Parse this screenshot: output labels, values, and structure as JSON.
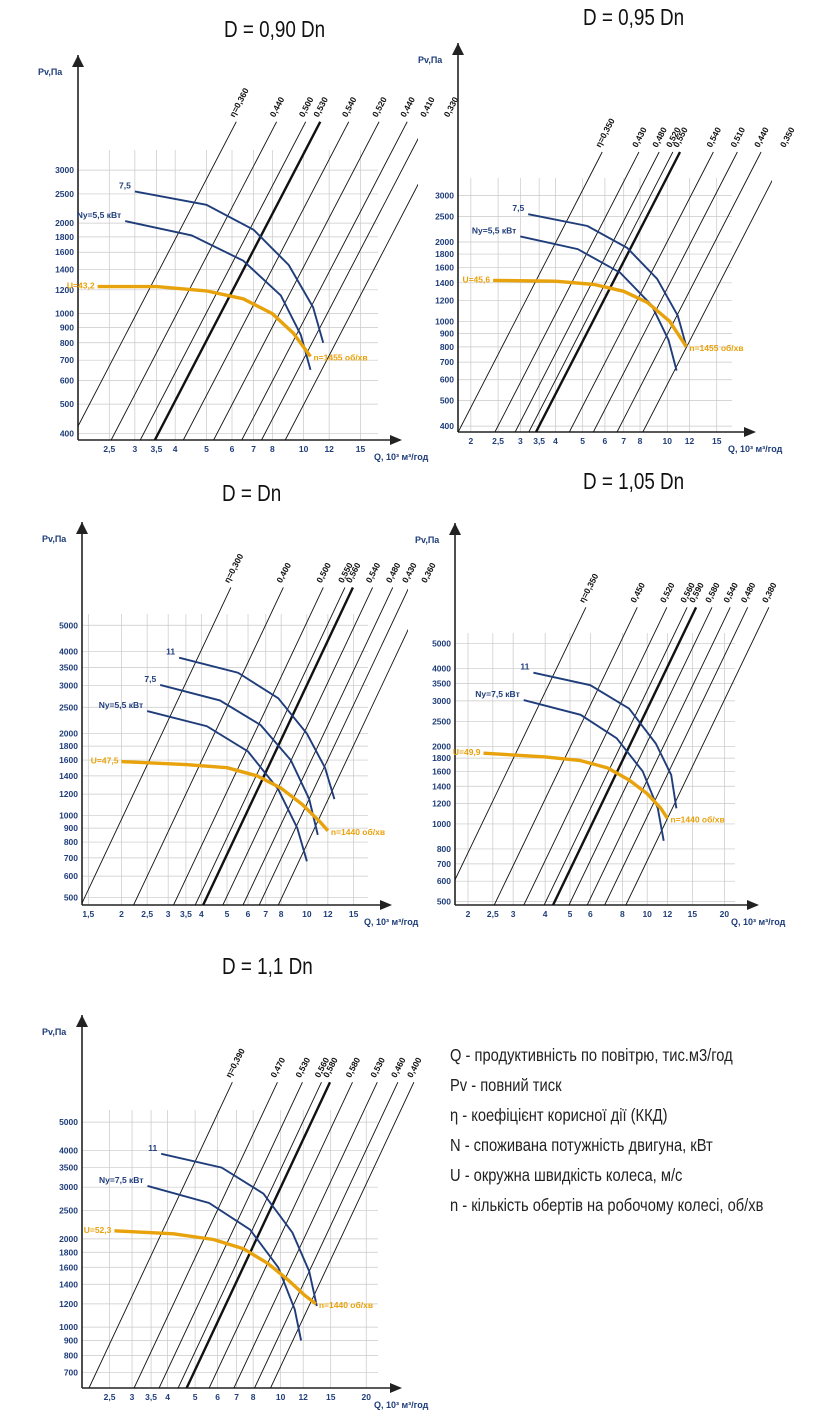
{
  "header_fragment": "",
  "legend": [
    "Q - продуктивність по повітрю, тис.м3/год",
    "Pv - повний тиск",
    "η - коефіцієнт корисної дії (ККД)",
    "N - споживана потужність двигуна, кВт",
    "U - окружна швидкість колеса, м/с",
    "n - кількість обертів на робочому колесі, об/хв"
  ],
  "colors": {
    "grid": "#c8c8c8",
    "axis": "#222222",
    "eff": "#111111",
    "power": "#1f3d7a",
    "speed": "#e8a20c",
    "label_orange": "#e8a20c",
    "label_blue": "#1f3d7a"
  },
  "chart_data": [
    {
      "type": "line",
      "title": "D = 0,90 Dn",
      "ylabel": "Pv,Па",
      "xlabel": "Q, 10³ м³/год",
      "xscale": "log",
      "yscale": "log",
      "xlim": [
        2.0,
        17
      ],
      "ylim": [
        380,
        3500
      ],
      "x_ticks": [
        2.5,
        3,
        3.5,
        4,
        5,
        6,
        7,
        8,
        10,
        12,
        15
      ],
      "x_tick_labels": [
        "2,5",
        "3",
        "3,5",
        "4",
        "5",
        "6",
        "7",
        "8",
        "10",
        "12",
        "15"
      ],
      "y_ticks": [
        400,
        500,
        600,
        700,
        800,
        900,
        1000,
        1200,
        1400,
        1600,
        1800,
        2000,
        2500,
        3000
      ],
      "efficiency_lines": [
        {
          "label": "η=0,360",
          "q_at_400": 1.95,
          "bold": false
        },
        {
          "label": "0,440",
          "q_at_400": 2.6,
          "bold": false
        },
        {
          "label": "0,500",
          "q_at_400": 3.2,
          "bold": false
        },
        {
          "label": "0,530",
          "q_at_400": 3.55,
          "bold": true
        },
        {
          "label": "0,540",
          "q_at_400": 4.35,
          "bold": false
        },
        {
          "label": "0,520",
          "q_at_400": 5.4,
          "bold": false
        },
        {
          "label": "0,440",
          "q_at_400": 6.6,
          "bold": false
        },
        {
          "label": "0,410",
          "q_at_400": 7.6,
          "bold": false
        },
        {
          "label": "0,330",
          "q_at_400": 9.0,
          "bold": false
        }
      ],
      "power_curves": [
        {
          "label": "7,5",
          "points": [
            [
              3.0,
              2550
            ],
            [
              5.0,
              2300
            ],
            [
              7.0,
              1900
            ],
            [
              9.0,
              1450
            ],
            [
              10.7,
              1050
            ],
            [
              11.5,
              800
            ]
          ]
        },
        {
          "label": "Ny=5,5 кВт",
          "points": [
            [
              2.8,
              2030
            ],
            [
              4.5,
              1820
            ],
            [
              6.5,
              1500
            ],
            [
              8.5,
              1150
            ],
            [
              9.8,
              850
            ],
            [
              10.5,
              650
            ]
          ]
        }
      ],
      "speed_curve": {
        "label": "U=43,2",
        "n_label": "n=1455 об/хв",
        "points": [
          [
            2.3,
            1230
          ],
          [
            3.5,
            1230
          ],
          [
            5.0,
            1190
          ],
          [
            6.5,
            1120
          ],
          [
            8.0,
            1000
          ],
          [
            9.3,
            860
          ],
          [
            10.5,
            720
          ]
        ]
      }
    },
    {
      "type": "line",
      "title": "D = 0,95 Dn",
      "ylabel": "Pv,Па",
      "xlabel": "Q, 10³ м³/год",
      "xscale": "log",
      "yscale": "log",
      "xlim": [
        1.8,
        17
      ],
      "ylim": [
        380,
        3500
      ],
      "x_ticks": [
        2,
        2.5,
        3,
        3.5,
        4,
        5,
        6,
        7,
        8,
        10,
        12,
        15
      ],
      "x_tick_labels": [
        "2",
        "2,5",
        "3",
        "3,5",
        "4",
        "5",
        "6",
        "7",
        "8",
        "10",
        "12",
        "15"
      ],
      "y_ticks": [
        400,
        500,
        600,
        700,
        800,
        900,
        1000,
        1200,
        1400,
        1600,
        1800,
        2000,
        2500,
        3000
      ],
      "efficiency_lines": [
        {
          "label": "η=0,350",
          "q_at_400": 1.85,
          "bold": false
        },
        {
          "label": "0,430",
          "q_at_400": 2.5,
          "bold": false
        },
        {
          "label": "0,480",
          "q_at_400": 2.95,
          "bold": false
        },
        {
          "label": "0,520",
          "q_at_400": 3.3,
          "bold": false
        },
        {
          "label": "0,550",
          "q_at_400": 3.5,
          "bold": true
        },
        {
          "label": "0,540",
          "q_at_400": 4.6,
          "bold": false
        },
        {
          "label": "0,510",
          "q_at_400": 5.6,
          "bold": false
        },
        {
          "label": "0,440",
          "q_at_400": 6.8,
          "bold": false
        },
        {
          "label": "0,350",
          "q_at_400": 8.4,
          "bold": false
        }
      ],
      "power_curves": [
        {
          "label": "7,5",
          "points": [
            [
              3.2,
              2550
            ],
            [
              5.2,
              2300
            ],
            [
              7.2,
              1900
            ],
            [
              9.2,
              1450
            ],
            [
              10.9,
              1050
            ],
            [
              11.7,
              800
            ]
          ]
        },
        {
          "label": "Ny=5,5 кВт",
          "points": [
            [
              3.0,
              2100
            ],
            [
              4.8,
              1880
            ],
            [
              6.8,
              1530
            ],
            [
              8.8,
              1150
            ],
            [
              10.1,
              850
            ],
            [
              10.8,
              650
            ]
          ]
        }
      ],
      "speed_curve": {
        "label": "U=45,6",
        "n_label": "n=1455 об/хв",
        "points": [
          [
            2.4,
            1430
          ],
          [
            4.0,
            1420
          ],
          [
            5.5,
            1380
          ],
          [
            7.0,
            1300
          ],
          [
            8.5,
            1180
          ],
          [
            10.2,
            1000
          ],
          [
            11.7,
            800
          ]
        ]
      }
    },
    {
      "type": "line",
      "title": "D = Dn",
      "ylabel": "Pv,Па",
      "xlabel": "Q, 10³ м³/год",
      "xscale": "log",
      "yscale": "log",
      "xlim": [
        1.42,
        17
      ],
      "ylim": [
        470,
        5500
      ],
      "x_ticks": [
        1.5,
        2,
        2.5,
        3,
        3.5,
        4,
        5,
        6,
        7,
        8,
        10,
        12,
        15
      ],
      "x_tick_labels": [
        "1,5",
        "2",
        "2,5",
        "3",
        "3,5",
        "4",
        "5",
        "6",
        "7",
        "8",
        "10",
        "12",
        "15"
      ],
      "y_ticks": [
        500,
        600,
        700,
        800,
        900,
        1000,
        1200,
        1400,
        1600,
        1800,
        2000,
        2500,
        3000,
        3500,
        4000,
        5000
      ],
      "efficiency_lines": [
        {
          "label": "η=0,300",
          "q_at_400": 1.3,
          "bold": false
        },
        {
          "label": "0,400",
          "q_at_400": 2.05,
          "bold": false
        },
        {
          "label": "0,500",
          "q_at_400": 2.9,
          "bold": false
        },
        {
          "label": "0,550",
          "q_at_400": 3.5,
          "bold": false
        },
        {
          "label": "0,560",
          "q_at_400": 3.75,
          "bold": true
        },
        {
          "label": "0,540",
          "q_at_400": 4.45,
          "bold": false
        },
        {
          "label": "0,480",
          "q_at_400": 5.3,
          "bold": false
        },
        {
          "label": "0,430",
          "q_at_400": 6.1,
          "bold": false
        },
        {
          "label": "0,360",
          "q_at_400": 7.2,
          "bold": false
        }
      ],
      "power_curves": [
        {
          "label": "11",
          "points": [
            [
              3.3,
              3800
            ],
            [
              5.5,
              3350
            ],
            [
              7.8,
              2700
            ],
            [
              10.0,
              2000
            ],
            [
              11.7,
              1500
            ],
            [
              12.7,
              1150
            ]
          ]
        },
        {
          "label": "7,5",
          "points": [
            [
              2.8,
              3020
            ],
            [
              4.7,
              2650
            ],
            [
              6.7,
              2150
            ],
            [
              8.7,
              1600
            ],
            [
              10.2,
              1150
            ],
            [
              11.0,
              850
            ]
          ]
        },
        {
          "label": "Ny=5,5 кВт",
          "points": [
            [
              2.5,
              2420
            ],
            [
              4.2,
              2130
            ],
            [
              6.0,
              1720
            ],
            [
              7.8,
              1250
            ],
            [
              9.2,
              900
            ],
            [
              10.0,
              680
            ]
          ]
        }
      ],
      "speed_curve": {
        "label": "U=47,5",
        "n_label": "n=1440 об/хв",
        "points": [
          [
            2.0,
            1580
          ],
          [
            3.5,
            1540
          ],
          [
            5.0,
            1500
          ],
          [
            6.5,
            1400
          ],
          [
            8.0,
            1260
          ],
          [
            9.6,
            1100
          ],
          [
            11.2,
            950
          ],
          [
            12.0,
            880
          ]
        ]
      }
    },
    {
      "type": "line",
      "title": "D = 1,05 Dn",
      "ylabel": "Pv,Па",
      "xlabel": "Q, 10³ м³/год",
      "xscale": "log",
      "yscale": "log",
      "xlim": [
        1.78,
        22
      ],
      "ylim": [
        485,
        5500
      ],
      "x_ticks": [
        2,
        2.5,
        3,
        4,
        5,
        6,
        8,
        10,
        12,
        15,
        20
      ],
      "x_tick_labels": [
        "2",
        "2,5",
        "3",
        "4",
        "5",
        "6",
        "8",
        "10",
        "12",
        "15",
        "20"
      ],
      "y_ticks": [
        500,
        600,
        700,
        800,
        1000,
        1200,
        1400,
        1600,
        1800,
        2000,
        2500,
        3000,
        3500,
        4000,
        5000
      ],
      "efficiency_lines": [
        {
          "label": "η=0,350",
          "q_at_400": 1.45,
          "bold": false
        },
        {
          "label": "0,450",
          "q_at_400": 2.3,
          "bold": false
        },
        {
          "label": "0,520",
          "q_at_400": 3.0,
          "bold": false
        },
        {
          "label": "0,560",
          "q_at_400": 3.6,
          "bold": false
        },
        {
          "label": "0,590",
          "q_at_400": 3.9,
          "bold": true
        },
        {
          "label": "0,580",
          "q_at_400": 4.5,
          "bold": false
        },
        {
          "label": "0,540",
          "q_at_400": 5.3,
          "bold": false
        },
        {
          "label": "0,480",
          "q_at_400": 6.2,
          "bold": false
        },
        {
          "label": "0,380",
          "q_at_400": 7.5,
          "bold": false
        }
      ],
      "power_curves": [
        {
          "label": "11",
          "points": [
            [
              3.6,
              3860
            ],
            [
              6.0,
              3450
            ],
            [
              8.5,
              2800
            ],
            [
              10.8,
              2050
            ],
            [
              12.4,
              1550
            ],
            [
              13.0,
              1150
            ]
          ]
        },
        {
          "label": "Ny=7,5 кВт",
          "points": [
            [
              3.3,
              3020
            ],
            [
              5.5,
              2650
            ],
            [
              7.6,
              2150
            ],
            [
              9.6,
              1600
            ],
            [
              11.0,
              1150
            ],
            [
              11.6,
              860
            ]
          ]
        }
      ],
      "speed_curve": {
        "label": "U=49,9",
        "n_label": "n=1440 об/хв",
        "points": [
          [
            2.3,
            1880
          ],
          [
            4.0,
            1820
          ],
          [
            5.5,
            1760
          ],
          [
            7.0,
            1650
          ],
          [
            8.5,
            1480
          ],
          [
            10.0,
            1310
          ],
          [
            11.3,
            1150
          ],
          [
            12.0,
            1050
          ]
        ]
      }
    },
    {
      "type": "line",
      "title": "D = 1,1 Dn",
      "ylabel": "Pv,Па",
      "xlabel": "Q, 10³ м³/год",
      "xscale": "log",
      "yscale": "log",
      "xlim": [
        2.0,
        22
      ],
      "ylim": [
        620,
        5500
      ],
      "x_ticks": [
        2.5,
        3,
        3.5,
        4,
        5,
        6,
        7,
        8,
        10,
        12,
        15,
        20
      ],
      "x_tick_labels": [
        "2,5",
        "3",
        "3,5",
        "4",
        "5",
        "6",
        "7",
        "8",
        "10",
        "12",
        "15",
        "20"
      ],
      "y_ticks": [
        700,
        800,
        900,
        1000,
        1200,
        1400,
        1600,
        1800,
        2000,
        2500,
        3000,
        3500,
        4000,
        5000
      ],
      "efficiency_lines": [
        {
          "label": "η=0,390",
          "q_at_400": 1.7,
          "bold": false
        },
        {
          "label": "0,470",
          "q_at_400": 2.45,
          "bold": false
        },
        {
          "label": "0,530",
          "q_at_400": 3.0,
          "bold": false
        },
        {
          "label": "0,560",
          "q_at_400": 3.5,
          "bold": false
        },
        {
          "label": "0,580",
          "q_at_400": 3.75,
          "bold": true
        },
        {
          "label": "0,580",
          "q_at_400": 4.5,
          "bold": false
        },
        {
          "label": "0,530",
          "q_at_400": 5.5,
          "bold": false
        },
        {
          "label": "0,460",
          "q_at_400": 6.5,
          "bold": false
        },
        {
          "label": "0,400",
          "q_at_400": 7.4,
          "bold": false
        }
      ],
      "power_curves": [
        {
          "label": "11",
          "points": [
            [
              3.8,
              3900
            ],
            [
              6.2,
              3500
            ],
            [
              8.7,
              2850
            ],
            [
              11.0,
              2100
            ],
            [
              12.6,
              1550
            ],
            [
              13.4,
              1180
            ]
          ]
        },
        {
          "label": "Ny=7,5 кВт",
          "points": [
            [
              3.4,
              3030
            ],
            [
              5.6,
              2650
            ],
            [
              7.8,
              2150
            ],
            [
              9.8,
              1600
            ],
            [
              11.2,
              1150
            ],
            [
              11.8,
              900
            ]
          ]
        }
      ],
      "speed_curve": {
        "label": "U=52,3",
        "n_label": "n=1440 об/хв",
        "points": [
          [
            2.6,
            2130
          ],
          [
            4.2,
            2080
          ],
          [
            5.8,
            1990
          ],
          [
            7.4,
            1850
          ],
          [
            9.0,
            1650
          ],
          [
            10.6,
            1450
          ],
          [
            12.2,
            1280
          ],
          [
            13.3,
            1200
          ]
        ]
      }
    }
  ]
}
